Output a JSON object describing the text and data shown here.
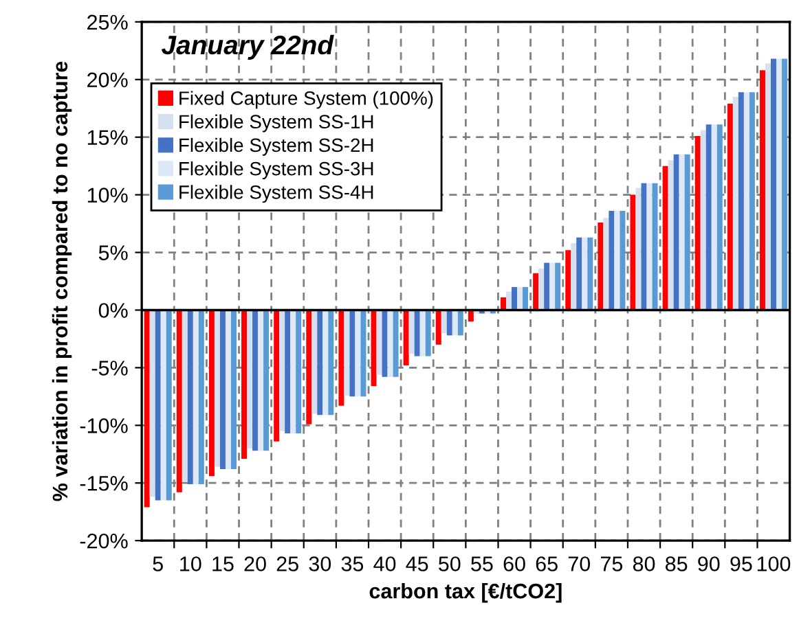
{
  "chart_data": {
    "type": "bar",
    "title": "January 22nd",
    "xlabel": "carbon tax [€/tCO2]",
    "ylabel": "% variation in profit compared to no capture",
    "categories": [
      "5",
      "10",
      "15",
      "20",
      "25",
      "30",
      "35",
      "40",
      "45",
      "50",
      "55",
      "60",
      "65",
      "70",
      "75",
      "80",
      "85",
      "90",
      "95",
      "100"
    ],
    "series": [
      {
        "name": "Fixed Capture System (100%)",
        "color": "#ff0000",
        "values": [
          -17.1,
          -15.8,
          -14.4,
          -12.9,
          -11.4,
          -9.9,
          -8.3,
          -6.6,
          -4.8,
          -3.0,
          -1.0,
          1.1,
          3.2,
          5.2,
          7.6,
          10.0,
          12.5,
          15.1,
          17.9,
          20.8
        ]
      },
      {
        "name": "Flexible System SS-1H",
        "color": "#d5e0f0",
        "values": [
          -16.2,
          -14.9,
          -13.6,
          -12.0,
          -10.5,
          -9.0,
          -7.4,
          -5.6,
          -3.8,
          -2.0,
          -0.3,
          1.6,
          3.6,
          5.8,
          8.0,
          10.6,
          13.0,
          15.6,
          18.5,
          21.4
        ]
      },
      {
        "name": "Flexible System SS-2H",
        "color": "#4472c4",
        "values": [
          -16.5,
          -15.1,
          -13.8,
          -12.2,
          -10.7,
          -9.1,
          -7.5,
          -5.8,
          -4.0,
          -2.2,
          -0.3,
          2.0,
          4.1,
          6.3,
          8.6,
          11.0,
          13.5,
          16.1,
          18.9,
          21.8
        ]
      },
      {
        "name": "Flexible System SS-3H",
        "color": "#dde9f6",
        "values": [
          -16.5,
          -15.1,
          -13.8,
          -12.2,
          -10.7,
          -9.1,
          -7.5,
          -5.8,
          -4.0,
          -2.2,
          -0.3,
          2.0,
          4.1,
          6.3,
          8.6,
          11.0,
          13.5,
          16.1,
          18.9,
          21.8
        ]
      },
      {
        "name": "Flexible System SS-4H",
        "color": "#5b9bd5",
        "values": [
          -16.5,
          -15.1,
          -13.8,
          -12.2,
          -10.7,
          -9.1,
          -7.5,
          -5.8,
          -4.0,
          -2.2,
          -0.3,
          2.0,
          4.1,
          6.3,
          8.6,
          11.0,
          13.5,
          16.1,
          18.9,
          21.8
        ]
      }
    ],
    "ylim": [
      -20,
      25
    ],
    "yticks": [
      {
        "value": -20,
        "label": "-20%"
      },
      {
        "value": -15,
        "label": "-15%"
      },
      {
        "value": -10,
        "label": "-10%"
      },
      {
        "value": -5,
        "label": "-5%"
      },
      {
        "value": 0,
        "label": "0%"
      },
      {
        "value": 5,
        "label": "5%"
      },
      {
        "value": 10,
        "label": "10%"
      },
      {
        "value": 15,
        "label": "15%"
      },
      {
        "value": 20,
        "label": "20%"
      },
      {
        "value": 25,
        "label": "25%"
      }
    ],
    "grid": true,
    "legend": "top left"
  }
}
